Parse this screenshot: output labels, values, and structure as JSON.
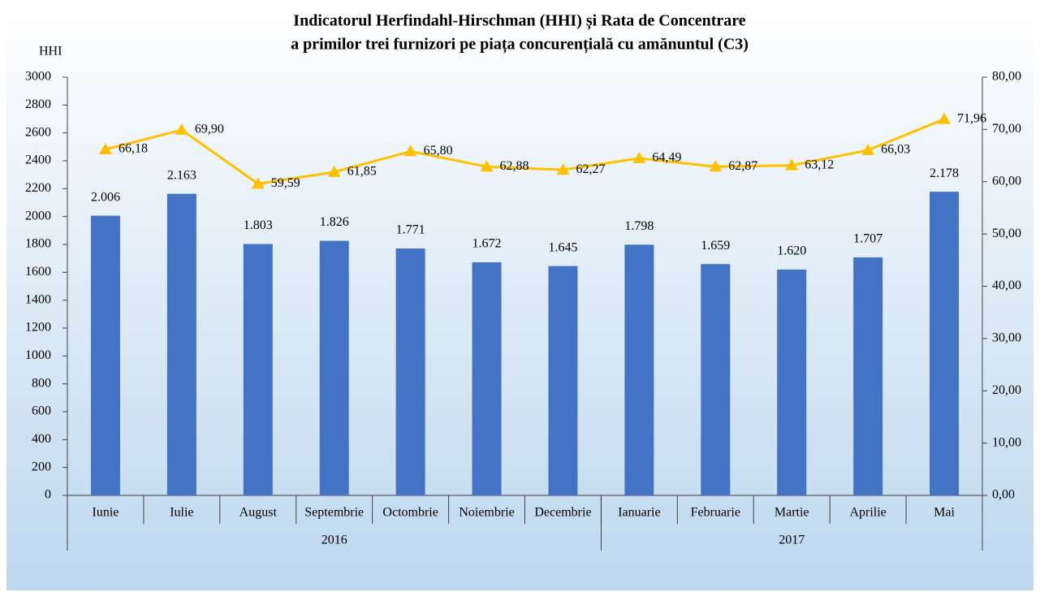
{
  "chart_data": {
    "type": "bar_line",
    "title": [
      "Indicatorul Herfindahl-Hirschman (HHI) și Rata de Concentrare",
      "a primilor trei furnizori pe piața concurențială cu amănuntul (C3)"
    ],
    "ylabel": "HHI",
    "categories": [
      "Iunie",
      "Iulie",
      "August",
      "Septembrie",
      "Octombrie",
      "Noiembrie",
      "Decembrie",
      "Ianuarie",
      "Februarie",
      "Martie",
      "Aprilie",
      "Mai"
    ],
    "groups": [
      {
        "label": "2016",
        "size": 7
      },
      {
        "label": "2017",
        "size": 5
      }
    ],
    "series": [
      {
        "type": "bar",
        "color": "#4472c4",
        "values": [
          2006,
          2163,
          1803,
          1826,
          1771,
          1672,
          1645,
          1798,
          1659,
          1620,
          1707,
          2178
        ],
        "value_labels": [
          "2.006",
          "2.163",
          "1.803",
          "1.826",
          "1.771",
          "1.672",
          "1.645",
          "1.798",
          "1.659",
          "1.620",
          "1.707",
          "2.178"
        ]
      },
      {
        "type": "line",
        "color": "#ffc000",
        "axis": "y2",
        "values": [
          66.18,
          69.9,
          59.59,
          61.85,
          65.8,
          62.88,
          62.27,
          64.49,
          62.87,
          63.12,
          66.03,
          71.96
        ],
        "value_labels": [
          "66,18",
          "69,90",
          "59,59",
          "61,85",
          "65,80",
          "62,88",
          "62,27",
          "64,49",
          "62,87",
          "63,12",
          "66,03",
          "71,96"
        ]
      }
    ],
    "ylim": [
      0,
      3000
    ],
    "yticks": [
      0,
      200,
      400,
      600,
      800,
      1000,
      1200,
      1400,
      1600,
      1800,
      2000,
      2200,
      2400,
      2600,
      2800,
      3000
    ],
    "y2lim": [
      0,
      80
    ],
    "y2ticks": [
      {
        "value": 0,
        "label": "0,00"
      },
      {
        "value": 10,
        "label": "10,00"
      },
      {
        "value": 20,
        "label": "20,00"
      },
      {
        "value": 30,
        "label": "30,00"
      },
      {
        "value": 40,
        "label": "40,00"
      },
      {
        "value": 50,
        "label": "50,00"
      },
      {
        "value": 60,
        "label": "60,00"
      },
      {
        "value": 70,
        "label": "70,00"
      },
      {
        "value": 80,
        "label": "80,00"
      }
    ]
  }
}
